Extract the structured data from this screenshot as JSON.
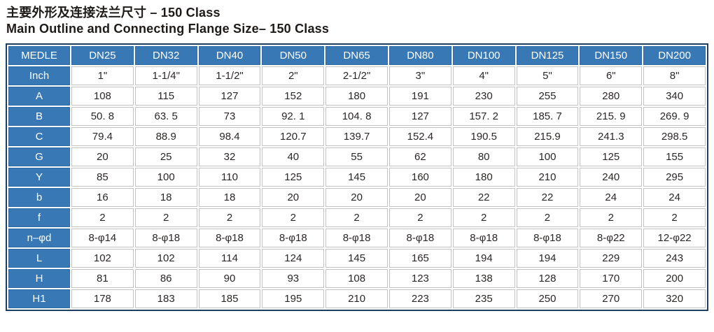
{
  "title": {
    "line1": "主要外形及连接法兰尺寸 – 150 Class",
    "line2": "Main Outline and Connecting Flange Size– 150 Class"
  },
  "table": {
    "header": [
      "MEDLE",
      "DN25",
      "DN32",
      "DN40",
      "DN50",
      "DN65",
      "DN80",
      "DN100",
      "DN125",
      "DN150",
      "DN200"
    ],
    "rows": [
      {
        "label": "Inch",
        "values": [
          "1\"",
          "1-1/4\"",
          "1-1/2\"",
          "2\"",
          "2-1/2\"",
          "3\"",
          "4\"",
          "5\"",
          "6\"",
          "8\""
        ]
      },
      {
        "label": "A",
        "values": [
          "108",
          "115",
          "127",
          "152",
          "180",
          "191",
          "230",
          "255",
          "280",
          "340"
        ]
      },
      {
        "label": "B",
        "values": [
          "50. 8",
          "63. 5",
          "73",
          "92. 1",
          "104. 8",
          "127",
          "157. 2",
          "185. 7",
          "215. 9",
          "269. 9"
        ]
      },
      {
        "label": "C",
        "values": [
          "79.4",
          "88.9",
          "98.4",
          "120.7",
          "139.7",
          "152.4",
          "190.5",
          "215.9",
          "241.3",
          "298.5"
        ]
      },
      {
        "label": "G",
        "values": [
          "20",
          "25",
          "32",
          "40",
          "55",
          "62",
          "80",
          "100",
          "125",
          "155"
        ]
      },
      {
        "label": "Y",
        "values": [
          "85",
          "100",
          "110",
          "125",
          "145",
          "160",
          "180",
          "210",
          "240",
          "295"
        ]
      },
      {
        "label": "b",
        "values": [
          "16",
          "18",
          "18",
          "20",
          "20",
          "20",
          "22",
          "22",
          "24",
          "24"
        ]
      },
      {
        "label": "f",
        "values": [
          "2",
          "2",
          "2",
          "2",
          "2",
          "2",
          "2",
          "2",
          "2",
          "2"
        ]
      },
      {
        "label": "n–φd",
        "values": [
          "8-φ14",
          "8-φ18",
          "8-φ18",
          "8-φ18",
          "8-φ18",
          "8-φ18",
          "8-φ18",
          "8-φ18",
          "8-φ22",
          "12-φ22"
        ]
      },
      {
        "label": "L",
        "values": [
          "102",
          "102",
          "114",
          "124",
          "145",
          "165",
          "194",
          "194",
          "229",
          "243"
        ]
      },
      {
        "label": "H",
        "values": [
          "81",
          "86",
          "90",
          "93",
          "108",
          "123",
          "138",
          "128",
          "170",
          "200"
        ]
      },
      {
        "label": "H1",
        "values": [
          "178",
          "183",
          "185",
          "195",
          "210",
          "223",
          "235",
          "250",
          "270",
          "320"
        ]
      }
    ]
  },
  "colors": {
    "header_blue": "#3878b4",
    "header_blue_border": "#2e6aa3",
    "frame_navy": "#1d3f63",
    "grid_gray": "#c3c3c3",
    "cell_text": "#2b2726"
  }
}
